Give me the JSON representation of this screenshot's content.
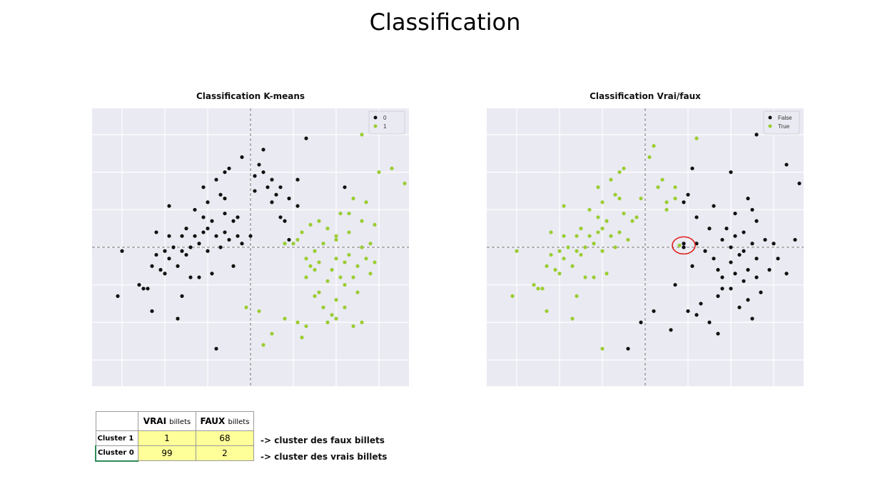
{
  "slide_title": "Classification",
  "chart_data": [
    {
      "type": "scatter",
      "title": "Classification K-means",
      "xlim": [
        -3.7,
        3.7
      ],
      "ylim": [
        -3.7,
        3.7
      ],
      "grid": true,
      "reference_lines": {
        "x": 0,
        "y": 0
      },
      "legend_position": "top-right",
      "series": [
        {
          "name": "0",
          "color": "#111111",
          "points": [
            [
              -3.0,
              -0.1
            ],
            [
              -3.1,
              -1.3
            ],
            [
              -2.6,
              -1.0
            ],
            [
              -2.5,
              -1.1
            ],
            [
              -2.4,
              -1.1
            ],
            [
              -2.3,
              -1.7
            ],
            [
              -2.3,
              -0.5
            ],
            [
              -2.2,
              0.4
            ],
            [
              -2.2,
              -0.2
            ],
            [
              -2.1,
              -0.6
            ],
            [
              -2.0,
              -0.7
            ],
            [
              -2.0,
              -0.1
            ],
            [
              -1.9,
              0.3
            ],
            [
              -1.9,
              1.1
            ],
            [
              -1.9,
              -0.3
            ],
            [
              -1.8,
              0.0
            ],
            [
              -1.7,
              -0.5
            ],
            [
              -1.7,
              -1.9
            ],
            [
              -1.6,
              0.3
            ],
            [
              -1.6,
              -0.1
            ],
            [
              -1.6,
              -1.3
            ],
            [
              -1.5,
              -0.2
            ],
            [
              -1.5,
              0.5
            ],
            [
              -1.4,
              0.0
            ],
            [
              -1.4,
              -0.8
            ],
            [
              -1.3,
              1.0
            ],
            [
              -1.3,
              0.3
            ],
            [
              -1.2,
              0.1
            ],
            [
              -1.2,
              -0.8
            ],
            [
              -1.1,
              0.4
            ],
            [
              -1.1,
              0.8
            ],
            [
              -1.1,
              1.6
            ],
            [
              -1.0,
              -0.1
            ],
            [
              -1.0,
              0.5
            ],
            [
              -1.0,
              1.2
            ],
            [
              -0.9,
              0.7
            ],
            [
              -0.9,
              -0.7
            ],
            [
              -0.8,
              1.8
            ],
            [
              -0.8,
              -2.7
            ],
            [
              -0.8,
              0.3
            ],
            [
              -0.7,
              1.4
            ],
            [
              -0.7,
              0.0
            ],
            [
              -0.6,
              2.0
            ],
            [
              -0.6,
              1.3
            ],
            [
              -0.6,
              0.4
            ],
            [
              -0.6,
              0.9
            ],
            [
              -0.5,
              2.1
            ],
            [
              -0.5,
              0.2
            ],
            [
              -0.4,
              0.7
            ],
            [
              -0.3,
              0.8
            ],
            [
              -0.3,
              0.3
            ],
            [
              -0.2,
              0.1
            ],
            [
              -0.4,
              -0.5
            ],
            [
              -0.2,
              2.4
            ],
            [
              0.0,
              0.3
            ],
            [
              0.1,
              1.9
            ],
            [
              0.2,
              2.2
            ],
            [
              0.1,
              1.5
            ],
            [
              0.3,
              2.0
            ],
            [
              0.3,
              2.6
            ],
            [
              0.4,
              1.6
            ],
            [
              0.5,
              1.8
            ],
            [
              0.5,
              1.2
            ],
            [
              0.6,
              1.4
            ],
            [
              0.7,
              1.6
            ],
            [
              0.7,
              0.8
            ],
            [
              0.8,
              0.7
            ],
            [
              0.9,
              0.2
            ],
            [
              0.9,
              1.3
            ],
            [
              1.1,
              1.1
            ],
            [
              1.1,
              1.8
            ],
            [
              1.3,
              2.9
            ],
            [
              2.2,
              1.6
            ]
          ]
        },
        {
          "name": "1",
          "color": "#9acd32",
          "points": [
            [
              0.8,
              0.1
            ],
            [
              1.1,
              0.2
            ],
            [
              1.2,
              0.4
            ],
            [
              1.3,
              -0.3
            ],
            [
              1.3,
              -0.8
            ],
            [
              1.4,
              -0.5
            ],
            [
              1.4,
              0.6
            ],
            [
              1.5,
              -1.3
            ],
            [
              1.5,
              -0.1
            ],
            [
              1.5,
              -0.6
            ],
            [
              1.6,
              0.7
            ],
            [
              1.6,
              -1.2
            ],
            [
              1.7,
              0.1
            ],
            [
              1.7,
              -1.6
            ],
            [
              1.8,
              -0.9
            ],
            [
              1.8,
              0.5
            ],
            [
              1.9,
              -0.6
            ],
            [
              1.9,
              -1.8
            ],
            [
              2.0,
              0.2
            ],
            [
              2.0,
              -0.3
            ],
            [
              2.0,
              -1.4
            ],
            [
              2.1,
              -0.8
            ],
            [
              2.1,
              0.9
            ],
            [
              2.2,
              -0.4
            ],
            [
              2.2,
              -1.0
            ],
            [
              2.3,
              -0.2
            ],
            [
              2.3,
              0.4
            ],
            [
              2.4,
              -0.8
            ],
            [
              2.4,
              1.3
            ],
            [
              2.5,
              -0.5
            ],
            [
              2.5,
              -1.2
            ],
            [
              2.6,
              0.7
            ],
            [
              2.6,
              0.0
            ],
            [
              2.7,
              -0.3
            ],
            [
              2.7,
              1.2
            ],
            [
              2.8,
              -0.7
            ],
            [
              2.8,
              0.1
            ],
            [
              2.9,
              0.6
            ],
            [
              2.9,
              -0.4
            ],
            [
              3.0,
              2.0
            ],
            [
              2.6,
              -2.0
            ],
            [
              2.4,
              -2.1
            ],
            [
              2.2,
              -1.6
            ],
            [
              2.0,
              -1.9
            ],
            [
              1.8,
              -2.0
            ],
            [
              1.3,
              -2.1
            ],
            [
              1.1,
              -2.0
            ],
            [
              0.8,
              -1.9
            ],
            [
              0.5,
              -2.3
            ],
            [
              0.3,
              -2.6
            ],
            [
              1.2,
              -2.4
            ],
            [
              2.6,
              3.0
            ],
            [
              3.6,
              1.7
            ],
            [
              3.3,
              2.1
            ],
            [
              -0.1,
              -1.6
            ],
            [
              0.2,
              -1.7
            ],
            [
              2.0,
              0.3
            ],
            [
              1.6,
              -0.4
            ],
            [
              2.3,
              0.9
            ],
            [
              1.0,
              0.1
            ]
          ]
        }
      ]
    },
    {
      "type": "scatter",
      "title": "Classification Vrai/faux",
      "xlim": [
        -3.7,
        3.7
      ],
      "ylim": [
        -3.7,
        3.7
      ],
      "grid": true,
      "reference_lines": {
        "x": 0,
        "y": 0
      },
      "legend_position": "top-right",
      "annotation": {
        "shape": "circle",
        "color": "#e0201c",
        "center": [
          0.9,
          0.05
        ]
      },
      "series": [
        {
          "name": "False",
          "color": "#111111",
          "points": [
            [
              0.9,
              0.1
            ],
            [
              1.2,
              0.1
            ],
            [
              1.4,
              -0.1
            ],
            [
              1.5,
              0.5
            ],
            [
              1.6,
              -0.3
            ],
            [
              1.7,
              -0.6
            ],
            [
              1.7,
              -1.3
            ],
            [
              1.8,
              0.2
            ],
            [
              1.8,
              -0.8
            ],
            [
              1.9,
              0.5
            ],
            [
              2.0,
              -1.1
            ],
            [
              2.0,
              -0.4
            ],
            [
              2.1,
              -0.7
            ],
            [
              2.1,
              0.3
            ],
            [
              2.2,
              -1.6
            ],
            [
              2.2,
              -0.2
            ],
            [
              2.3,
              0.4
            ],
            [
              2.3,
              -0.9
            ],
            [
              2.4,
              -1.4
            ],
            [
              2.4,
              -0.6
            ],
            [
              2.5,
              0.1
            ],
            [
              2.5,
              -1.9
            ],
            [
              2.6,
              -0.3
            ],
            [
              2.6,
              0.7
            ],
            [
              2.7,
              -1.2
            ],
            [
              2.8,
              0.2
            ],
            [
              2.9,
              -0.6
            ],
            [
              3.0,
              0.1
            ],
            [
              3.1,
              -0.3
            ],
            [
              3.3,
              -0.7
            ],
            [
              3.5,
              0.2
            ],
            [
              2.0,
              2.0
            ],
            [
              2.5,
              1.0
            ],
            [
              2.4,
              1.3
            ],
            [
              2.1,
              0.9
            ],
            [
              1.6,
              1.1
            ],
            [
              1.2,
              0.8
            ],
            [
              1.0,
              1.4
            ],
            [
              0.9,
              1.2
            ],
            [
              1.1,
              2.1
            ],
            [
              0.7,
              -1.0
            ],
            [
              0.2,
              -1.7
            ],
            [
              -0.1,
              -2.0
            ],
            [
              0.6,
              -2.2
            ],
            [
              -0.4,
              -2.7
            ],
            [
              2.6,
              3.0
            ],
            [
              3.3,
              2.2
            ],
            [
              3.6,
              1.7
            ],
            [
              1.7,
              -2.3
            ],
            [
              1.5,
              -2.0
            ],
            [
              1.2,
              -1.8
            ],
            [
              1.0,
              -1.7
            ],
            [
              1.3,
              -1.5
            ],
            [
              0.9,
              0.0
            ],
            [
              1.1,
              -0.5
            ],
            [
              1.8,
              -1.1
            ],
            [
              2.3,
              -0.1
            ],
            [
              2.6,
              -0.8
            ],
            [
              2.0,
              0.0
            ]
          ]
        },
        {
          "name": "True",
          "color": "#9acd32",
          "points": [
            [
              -3.0,
              -0.1
            ],
            [
              -3.1,
              -1.3
            ],
            [
              -2.6,
              -1.0
            ],
            [
              -2.5,
              -1.1
            ],
            [
              -2.4,
              -1.1
            ],
            [
              -2.3,
              -1.7
            ],
            [
              -2.3,
              -0.5
            ],
            [
              -2.2,
              0.4
            ],
            [
              -2.2,
              -0.2
            ],
            [
              -2.1,
              -0.6
            ],
            [
              -2.0,
              -0.7
            ],
            [
              -2.0,
              -0.1
            ],
            [
              -1.9,
              0.3
            ],
            [
              -1.9,
              1.1
            ],
            [
              -1.9,
              -0.3
            ],
            [
              -1.8,
              0.0
            ],
            [
              -1.7,
              -0.5
            ],
            [
              -1.7,
              -1.9
            ],
            [
              -1.6,
              0.3
            ],
            [
              -1.6,
              -0.1
            ],
            [
              -1.6,
              -1.3
            ],
            [
              -1.5,
              -0.2
            ],
            [
              -1.5,
              0.5
            ],
            [
              -1.4,
              0.0
            ],
            [
              -1.4,
              -0.8
            ],
            [
              -1.3,
              1.0
            ],
            [
              -1.3,
              0.3
            ],
            [
              -1.2,
              0.1
            ],
            [
              -1.2,
              -0.8
            ],
            [
              -1.1,
              0.4
            ],
            [
              -1.1,
              0.8
            ],
            [
              -1.1,
              1.6
            ],
            [
              -1.0,
              -0.1
            ],
            [
              -1.0,
              0.5
            ],
            [
              -1.0,
              1.2
            ],
            [
              -0.9,
              0.7
            ],
            [
              -0.9,
              -0.7
            ],
            [
              -0.8,
              1.8
            ],
            [
              -0.8,
              0.3
            ],
            [
              -0.7,
              1.4
            ],
            [
              -0.7,
              0.0
            ],
            [
              -0.6,
              2.0
            ],
            [
              -0.6,
              1.3
            ],
            [
              -0.6,
              0.4
            ],
            [
              -0.5,
              0.9
            ],
            [
              -0.5,
              2.1
            ],
            [
              -0.4,
              0.2
            ],
            [
              -0.3,
              0.7
            ],
            [
              -0.2,
              0.8
            ],
            [
              -0.1,
              1.3
            ],
            [
              0.1,
              2.4
            ],
            [
              0.2,
              2.7
            ],
            [
              0.3,
              1.6
            ],
            [
              0.4,
              1.8
            ],
            [
              0.5,
              1.2
            ],
            [
              0.7,
              1.6
            ],
            [
              0.7,
              1.3
            ],
            [
              0.5,
              1.0
            ],
            [
              1.2,
              2.9
            ],
            [
              -1.0,
              -2.7
            ],
            [
              0.8,
              0.05
            ]
          ]
        }
      ]
    }
  ],
  "table": {
    "header": {
      "col1": "VRAI",
      "col1_unit": "billets",
      "col2": "FAUX",
      "col2_unit": "billets"
    },
    "rows": [
      {
        "label": "Cluster 1",
        "vrai": "1",
        "faux": "68",
        "note": "-> cluster des faux billets"
      },
      {
        "label": "Cluster 0",
        "vrai": "99",
        "faux": "2",
        "note": "-> cluster des vrais billets"
      }
    ]
  }
}
